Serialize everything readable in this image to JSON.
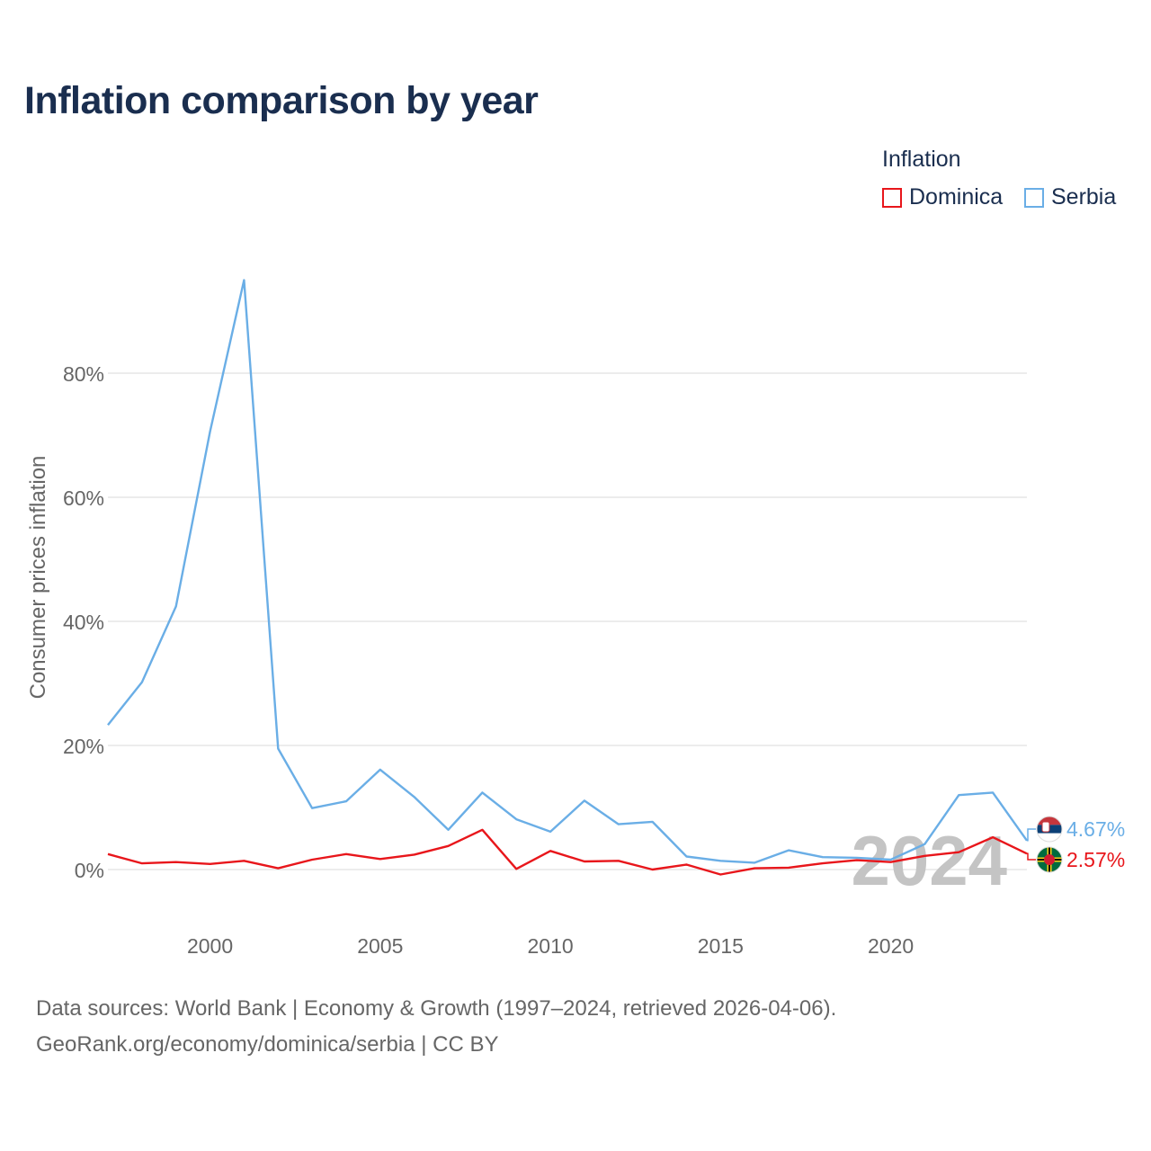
{
  "title": "Inflation comparison by year",
  "legend": {
    "title": "Inflation",
    "items": [
      {
        "label": "Dominica",
        "color": "#e8161b"
      },
      {
        "label": "Serbia",
        "color": "#6aaee6"
      }
    ]
  },
  "chart_data": {
    "type": "line",
    "title": "Inflation comparison by year",
    "xlabel": "",
    "ylabel": "Consumer prices inflation",
    "x": [
      1997,
      1998,
      1999,
      2000,
      2001,
      2002,
      2003,
      2004,
      2005,
      2006,
      2007,
      2008,
      2009,
      2010,
      2011,
      2012,
      2013,
      2014,
      2015,
      2016,
      2017,
      2018,
      2019,
      2020,
      2021,
      2022,
      2023,
      2024
    ],
    "xlim": [
      1997,
      2024
    ],
    "xticks": [
      2000,
      2005,
      2010,
      2015,
      2020
    ],
    "ylim": [
      -8,
      100
    ],
    "yticks": [
      0,
      20,
      40,
      60,
      80
    ],
    "ytick_labels": [
      "0%",
      "20%",
      "40%",
      "60%",
      "80%"
    ],
    "grid": true,
    "watermark_year": "2024",
    "series": [
      {
        "name": "Serbia",
        "color": "#6aaee6",
        "values": [
          23.3,
          30.2,
          42.4,
          70.6,
          95.0,
          19.5,
          9.9,
          11.0,
          16.1,
          11.7,
          6.4,
          12.4,
          8.1,
          6.1,
          11.1,
          7.3,
          7.7,
          2.1,
          1.4,
          1.1,
          3.1,
          2.0,
          1.9,
          1.6,
          4.1,
          12.0,
          12.4,
          4.67
        ],
        "end_label": "4.67%"
      },
      {
        "name": "Dominica",
        "color": "#e8161b",
        "values": [
          2.5,
          1.0,
          1.2,
          0.9,
          1.4,
          0.2,
          1.6,
          2.5,
          1.7,
          2.4,
          3.8,
          6.4,
          0.1,
          3.0,
          1.3,
          1.4,
          0.0,
          0.8,
          -0.8,
          0.2,
          0.3,
          1.0,
          1.5,
          1.2,
          2.2,
          2.8,
          5.2,
          2.57
        ],
        "end_label": "2.57%"
      }
    ]
  },
  "footer": {
    "line1": "Data sources: World Bank | Economy & Growth (1997–2024, retrieved 2026-04-06).",
    "line2": "GeoRank.org/economy/dominica/serbia | CC BY"
  }
}
